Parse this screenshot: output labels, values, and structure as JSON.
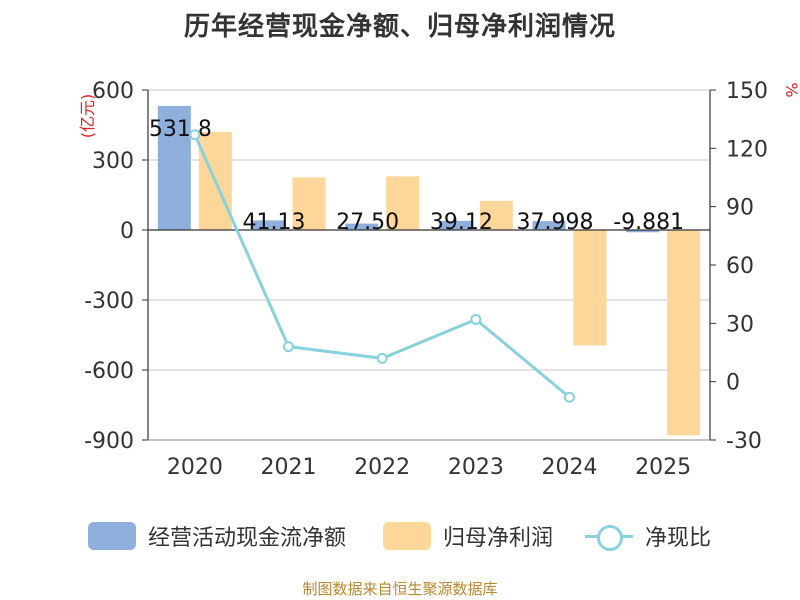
{
  "title": "历年经营现金净额、归母净利润情况",
  "source": "制图数据来自恒生聚源数据库",
  "chart_data": {
    "type": "bar+line",
    "categories": [
      "2020",
      "2021",
      "2022",
      "2023",
      "2024",
      "2025"
    ],
    "series": [
      {
        "name": "经营活动现金流净额",
        "axis": "left",
        "kind": "bar",
        "color": "#8eaedb",
        "values": [
          531.8,
          41.13,
          27.5,
          39.12,
          37.998,
          -9.881
        ],
        "labels": [
          "531.8",
          "41.13",
          "27.50",
          "39.12",
          "37.998",
          "-9.881"
        ]
      },
      {
        "name": "归母净利润",
        "axis": "left",
        "kind": "bar",
        "color": "#fdd69a",
        "values": [
          420,
          225,
          230,
          125,
          -495,
          -880
        ]
      },
      {
        "name": "净现比",
        "axis": "right",
        "kind": "line",
        "color": "#88d2dc",
        "values": [
          127,
          18,
          12,
          32,
          -8,
          null
        ]
      }
    ],
    "y_left": {
      "label": "(亿元)",
      "label_color": "#e02020",
      "min": -900,
      "max": 600,
      "ticks": [
        600,
        300,
        0,
        -300,
        -600,
        -900
      ]
    },
    "y_right": {
      "label": "%",
      "label_color": "#e02020",
      "min": -30,
      "max": 150,
      "ticks": [
        150,
        120,
        90,
        60,
        30,
        0,
        -30
      ]
    },
    "grid": true,
    "legend": "bottom"
  }
}
